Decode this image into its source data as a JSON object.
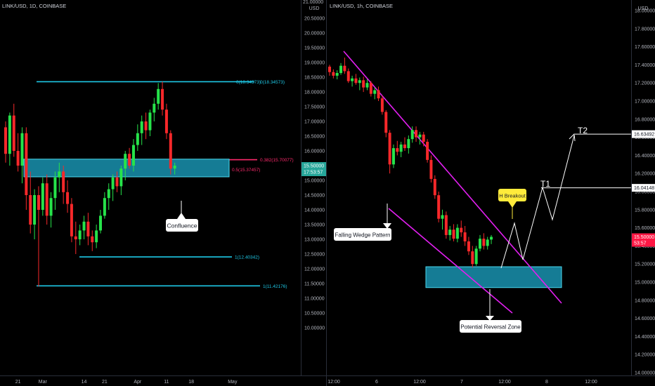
{
  "colors": {
    "background": "#000000",
    "axis_text": "#b2b5be",
    "bull": "#26e34a",
    "bear": "#f7282a",
    "cyan": "#1ec8e6",
    "pink": "#ff2a6d",
    "magenta": "#e21ff0",
    "zone_fill": "#157c95",
    "callout_bg": "#ffffff",
    "breakout_bg": "#ffeb3b",
    "price_tag": "#26a69a",
    "price_tag_red": "#ff1744"
  },
  "chart_data": [
    {
      "type": "candlestick",
      "symbol_label": "LINK/USD, 1D, COINBASE",
      "y_axis_unit": "USD",
      "y_ticks": [
        "21.00000",
        "20.50000",
        "20.00000",
        "19.50000",
        "19.00000",
        "18.50000",
        "18.00000",
        "17.50000",
        "17.00000",
        "16.50000",
        "16.00000",
        "15.50000",
        "15.00000",
        "14.50000",
        "14.00000",
        "13.50000",
        "13.00000",
        "12.50000",
        "12.00000",
        "11.50000",
        "11.00000",
        "10.50000",
        "10.00000"
      ],
      "y_tick_values": [
        21.0,
        20.5,
        20.0,
        19.5,
        19.0,
        18.5,
        18.0,
        17.5,
        17.0,
        16.5,
        16.0,
        15.5,
        15.0,
        14.5,
        14.0,
        13.5,
        13.0,
        12.5,
        12.0,
        11.5,
        11.0,
        10.5,
        10.0
      ],
      "x_ticks": [
        "21",
        "Mar",
        "14",
        "21",
        "Apr",
        "11",
        "18",
        "May"
      ],
      "x_tick_index": [
        3,
        9,
        19,
        24,
        32,
        39,
        45,
        55
      ],
      "price_tag": {
        "value": "15.50000",
        "sub": "17:53:57",
        "price": 15.5
      },
      "fib_levels": [
        {
          "label": "0(18.34573)",
          "value": 18.34573
        },
        {
          "label": "0.382(15.70077)",
          "value": 15.70077
        },
        {
          "label": "0.5(15.37457)",
          "value": 15.37457
        },
        {
          "label": "1(12.40342)",
          "value": 12.40342
        },
        {
          "label": "1(11.42176)",
          "value": 11.42176
        }
      ],
      "top_fib_duplicate_label": "0(18.34573)",
      "zone": {
        "from": 15.12,
        "to": 15.72
      },
      "callouts": [
        {
          "text": "Confluence"
        }
      ],
      "candles": [
        [
          16.8,
          17.0,
          15.6,
          15.9
        ],
        [
          15.9,
          17.3,
          15.5,
          17.2
        ],
        [
          17.2,
          17.6,
          15.8,
          16.0
        ],
        [
          16.0,
          16.6,
          15.3,
          15.5
        ],
        [
          15.5,
          16.8,
          14.9,
          16.6
        ],
        [
          16.6,
          16.8,
          14.0,
          14.5
        ],
        [
          14.5,
          15.3,
          13.2,
          13.5
        ],
        [
          13.5,
          14.7,
          13.0,
          14.5
        ],
        [
          14.5,
          14.8,
          11.4,
          14.0
        ],
        [
          14.0,
          15.1,
          13.8,
          14.9
        ],
        [
          14.9,
          15.2,
          13.5,
          13.8
        ],
        [
          13.8,
          14.6,
          13.4,
          14.4
        ],
        [
          14.4,
          15.3,
          14.0,
          15.1
        ],
        [
          15.1,
          15.6,
          14.6,
          15.3
        ],
        [
          15.3,
          15.5,
          14.2,
          14.6
        ],
        [
          14.6,
          15.0,
          13.9,
          14.2
        ],
        [
          14.2,
          14.4,
          12.9,
          13.1
        ],
        [
          13.1,
          13.6,
          12.5,
          13.0
        ],
        [
          13.0,
          13.5,
          12.8,
          13.3
        ],
        [
          13.3,
          13.8,
          13.0,
          13.6
        ],
        [
          13.6,
          13.9,
          12.8,
          13.1
        ],
        [
          13.1,
          13.3,
          12.6,
          12.9
        ],
        [
          12.9,
          13.5,
          12.7,
          13.3
        ],
        [
          13.3,
          14.0,
          13.2,
          13.8
        ],
        [
          13.8,
          14.6,
          13.7,
          14.4
        ],
        [
          14.4,
          14.9,
          14.0,
          14.7
        ],
        [
          14.7,
          15.2,
          14.3,
          15.1
        ],
        [
          15.1,
          15.3,
          14.6,
          14.8
        ],
        [
          14.8,
          15.5,
          14.5,
          15.4
        ],
        [
          15.4,
          16.0,
          15.0,
          15.9
        ],
        [
          15.9,
          16.1,
          15.4,
          15.5
        ],
        [
          15.5,
          16.4,
          15.3,
          16.2
        ],
        [
          16.2,
          16.9,
          16.0,
          16.6
        ],
        [
          16.6,
          17.2,
          16.2,
          17.0
        ],
        [
          17.0,
          17.3,
          16.4,
          16.7
        ],
        [
          16.7,
          17.4,
          16.5,
          17.3
        ],
        [
          17.3,
          17.8,
          17.0,
          17.6
        ],
        [
          17.6,
          18.3,
          17.4,
          18.1
        ],
        [
          18.1,
          18.35,
          17.2,
          17.4
        ],
        [
          17.4,
          17.6,
          16.4,
          16.6
        ],
        [
          16.6,
          16.7,
          15.2,
          15.4
        ],
        [
          15.4,
          15.6,
          15.2,
          15.5
        ]
      ]
    },
    {
      "type": "candlestick",
      "symbol_label": "LINK/USD, 1h, COINBASE",
      "y_axis_unit": "USD",
      "y_ticks": [
        "18.00000",
        "17.80000",
        "17.60000",
        "17.40000",
        "17.20000",
        "17.00000",
        "16.80000",
        "16.60000",
        "16.40000",
        "16.20000",
        "16.00000",
        "15.80000",
        "15.60000",
        "15.40000",
        "15.20000",
        "15.00000",
        "14.80000",
        "14.60000",
        "14.40000",
        "14.20000",
        "14.00000"
      ],
      "y_tick_values": [
        18.0,
        17.8,
        17.6,
        17.4,
        17.2,
        17.0,
        16.8,
        16.6,
        16.4,
        16.2,
        16.0,
        15.8,
        15.6,
        15.4,
        15.2,
        15.0,
        14.8,
        14.6,
        14.4,
        14.2,
        14.0
      ],
      "x_ticks": [
        "12:00",
        "6",
        "12:00",
        "7",
        "12:00",
        "8",
        "12:00"
      ],
      "price_tags": [
        {
          "value": "16.63492",
          "price": 16.63492
        },
        {
          "value": "16.04148",
          "price": 16.04148
        },
        {
          "value": "15.50000",
          "sub": "53:57",
          "price": 15.5
        }
      ],
      "zone": {
        "from": 14.94,
        "to": 15.17
      },
      "target_labels": [
        {
          "text": "T1"
        },
        {
          "text": "T2"
        }
      ],
      "callouts": [
        {
          "text": "Falling Wedge Pattern"
        },
        {
          "text": "Potential Reversal Zone"
        },
        {
          "text": "H Breakout"
        }
      ],
      "candles": [
        [
          17.38,
          17.4,
          17.28,
          17.32
        ],
        [
          17.32,
          17.35,
          17.25,
          17.28
        ],
        [
          17.28,
          17.34,
          17.24,
          17.31
        ],
        [
          17.31,
          17.42,
          17.29,
          17.39
        ],
        [
          17.39,
          17.48,
          17.3,
          17.33
        ],
        [
          17.33,
          17.36,
          17.2,
          17.22
        ],
        [
          17.22,
          17.28,
          17.16,
          17.25
        ],
        [
          17.25,
          17.3,
          17.18,
          17.2
        ],
        [
          17.2,
          17.26,
          17.12,
          17.23
        ],
        [
          17.23,
          17.27,
          17.1,
          17.15
        ],
        [
          17.15,
          17.24,
          17.12,
          17.2
        ],
        [
          17.2,
          17.22,
          17.05,
          17.08
        ],
        [
          17.08,
          17.15,
          17.02,
          17.12
        ],
        [
          17.12,
          17.16,
          17.0,
          17.03
        ],
        [
          17.03,
          17.06,
          16.85,
          16.88
        ],
        [
          16.88,
          16.9,
          16.6,
          16.65
        ],
        [
          16.65,
          16.68,
          16.2,
          16.3
        ],
        [
          16.3,
          16.52,
          16.26,
          16.48
        ],
        [
          16.48,
          16.56,
          16.4,
          16.44
        ],
        [
          16.44,
          16.55,
          16.38,
          16.52
        ],
        [
          16.52,
          16.6,
          16.45,
          16.48
        ],
        [
          16.48,
          16.62,
          16.42,
          16.58
        ],
        [
          16.58,
          16.72,
          16.54,
          16.68
        ],
        [
          16.68,
          16.72,
          16.55,
          16.6
        ],
        [
          16.6,
          16.66,
          16.52,
          16.63
        ],
        [
          16.63,
          16.66,
          16.5,
          16.55
        ],
        [
          16.55,
          16.58,
          16.32,
          16.35
        ],
        [
          16.35,
          16.4,
          16.1,
          16.14
        ],
        [
          16.14,
          16.18,
          15.92,
          15.96
        ],
        [
          15.96,
          16.0,
          15.66,
          15.7
        ],
        [
          15.7,
          15.8,
          15.58,
          15.74
        ],
        [
          15.74,
          15.78,
          15.48,
          15.52
        ],
        [
          15.52,
          15.62,
          15.46,
          15.58
        ],
        [
          15.58,
          15.64,
          15.45,
          15.48
        ],
        [
          15.48,
          15.64,
          15.44,
          15.6
        ],
        [
          15.6,
          15.68,
          15.5,
          15.55
        ],
        [
          15.55,
          15.62,
          15.4,
          15.45
        ],
        [
          15.45,
          15.5,
          15.3,
          15.34
        ],
        [
          15.34,
          15.4,
          15.16,
          15.2
        ],
        [
          15.2,
          15.4,
          15.18,
          15.37
        ],
        [
          15.37,
          15.52,
          15.34,
          15.48
        ],
        [
          15.48,
          15.54,
          15.36,
          15.4
        ],
        [
          15.4,
          15.5,
          15.36,
          15.47
        ],
        [
          15.47,
          15.52,
          15.42,
          15.5
        ]
      ]
    }
  ]
}
